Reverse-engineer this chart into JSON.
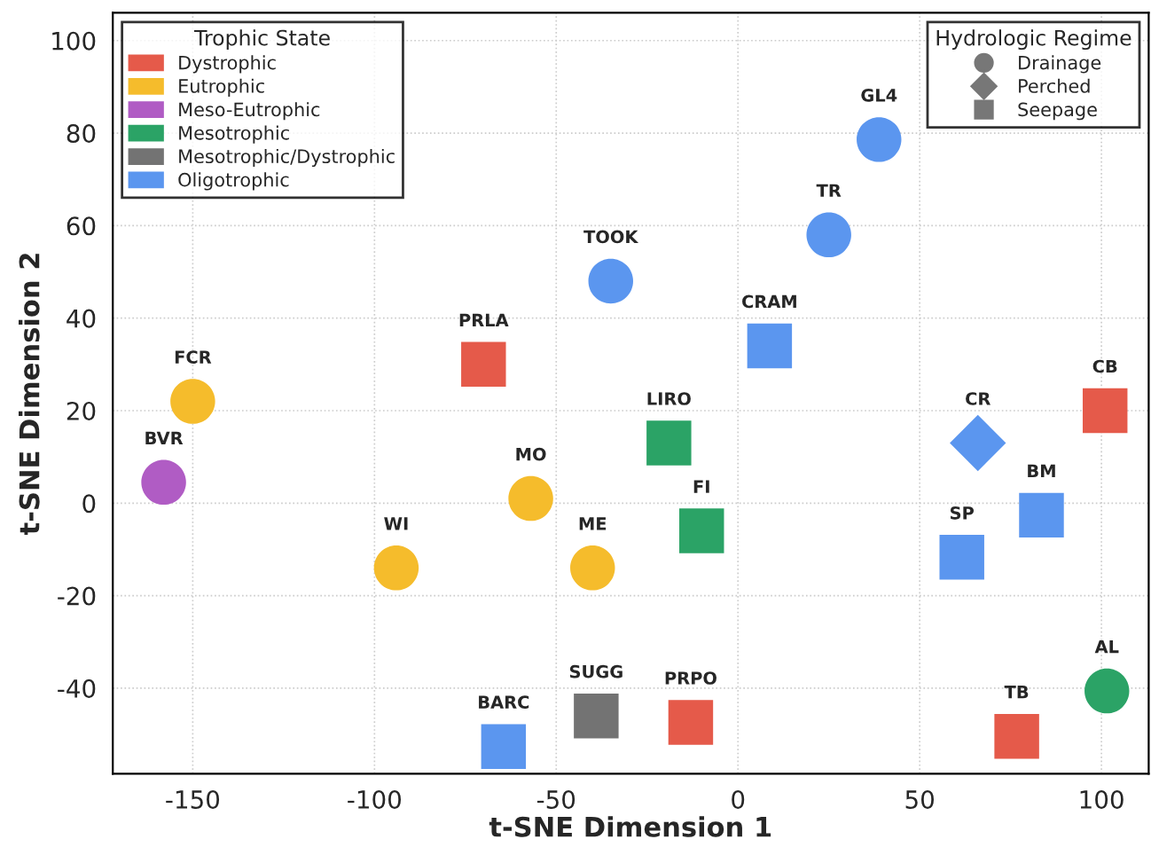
{
  "chart_data": {
    "type": "scatter",
    "xlabel": "t-SNE Dimension 1",
    "ylabel": "t-SNE Dimension 2",
    "xlim": [
      -172,
      113
    ],
    "ylim": [
      -58.5,
      106
    ],
    "xticks": [
      -150,
      -100,
      -50,
      0,
      50,
      100
    ],
    "yticks": [
      -40,
      -20,
      0,
      20,
      40,
      60,
      80,
      100
    ],
    "grid": true,
    "legend": "top left",
    "legend_title": [
      "Trophic State",
      "Hydrologic Regime"
    ],
    "series": [
      {
        "name": "Dystrophic",
        "color": "#e55a4a",
        "marker": "square",
        "x": [
          -70,
          101,
          -13,
          76.7
        ],
        "values": [
          30,
          20,
          -47.4,
          -50.4
        ]
      },
      {
        "name": "Eutrophic",
        "color": "#f5bc2c",
        "marker": "circle",
        "x": [
          -150,
          -57,
          -94,
          -40
        ],
        "values": [
          22,
          1,
          -14,
          -14
        ]
      },
      {
        "name": "Meso-Eutrophic",
        "color": "#b05cc4",
        "marker": "circle",
        "x": [
          -158
        ],
        "values": [
          4.5
        ]
      },
      {
        "name": "Mesotrophic",
        "color": "#2ba366",
        "marker": "square",
        "x": [
          -19,
          -10
        ],
        "values": [
          13,
          -6
        ]
      },
      {
        "color": "#2ba366",
        "marker": "circle",
        "x": [
          101.5
        ],
        "values": [
          -40.6
        ]
      },
      {
        "name": "Mesotrophic/Dystrophic",
        "color": "#737373",
        "marker": "square",
        "x": [
          -39
        ],
        "values": [
          -46
        ]
      },
      {
        "name": "Oligotrophic",
        "color": "#5b96ef",
        "marker": "circle",
        "x": [
          38.8,
          25,
          -35
        ],
        "values": [
          78.6,
          58,
          48
        ]
      },
      {
        "color": "#5b96ef",
        "marker": "square",
        "x": [
          8.7,
          83.5,
          61.6,
          -64.5
        ],
        "values": [
          34,
          -2.6,
          -11.7,
          -52.6
        ]
      },
      {
        "color": "#5b96ef",
        "marker": "diamond",
        "x": [
          66
        ],
        "values": [
          13
        ]
      },
      {
        "name": "Drainage",
        "color": "#777777",
        "marker": "circle"
      },
      {
        "name": "Perched",
        "color": "#777777",
        "marker": "diamond"
      },
      {
        "name": "Seepage",
        "color": "#777777",
        "marker": "square"
      }
    ],
    "annotations": [
      {
        "text": "PRLA",
        "x": -70,
        "y": 30
      },
      {
        "text": "CB",
        "x": 101,
        "y": 20
      },
      {
        "text": "PRPO",
        "x": -13,
        "y": -47.4
      },
      {
        "text": "TB",
        "x": 76.7,
        "y": -50.4
      },
      {
        "text": "FCR",
        "x": -150,
        "y": 22
      },
      {
        "text": "MO",
        "x": -57,
        "y": 1
      },
      {
        "text": "WI",
        "x": -94,
        "y": -14
      },
      {
        "text": "ME",
        "x": -40,
        "y": -14
      },
      {
        "text": "BVR",
        "x": -158,
        "y": 4.5
      },
      {
        "text": "LIRO",
        "x": -19,
        "y": 13
      },
      {
        "text": "FI",
        "x": -10,
        "y": -6
      },
      {
        "text": "AL",
        "x": 101.5,
        "y": -40.6
      },
      {
        "text": "SUGG",
        "x": -39,
        "y": -46
      },
      {
        "text": "GL4",
        "x": 38.8,
        "y": 78.6
      },
      {
        "text": "TR",
        "x": 25,
        "y": 58
      },
      {
        "text": "TOOK",
        "x": -35,
        "y": 48
      },
      {
        "text": "CRAM",
        "x": 8.7,
        "y": 34
      },
      {
        "text": "CR",
        "x": 66,
        "y": 13
      },
      {
        "text": "BM",
        "x": 83.5,
        "y": -2.6
      },
      {
        "text": "SP",
        "x": 61.6,
        "y": -11.7
      },
      {
        "text": "BARC",
        "x": -64.5,
        "y": -52.6
      }
    ]
  }
}
